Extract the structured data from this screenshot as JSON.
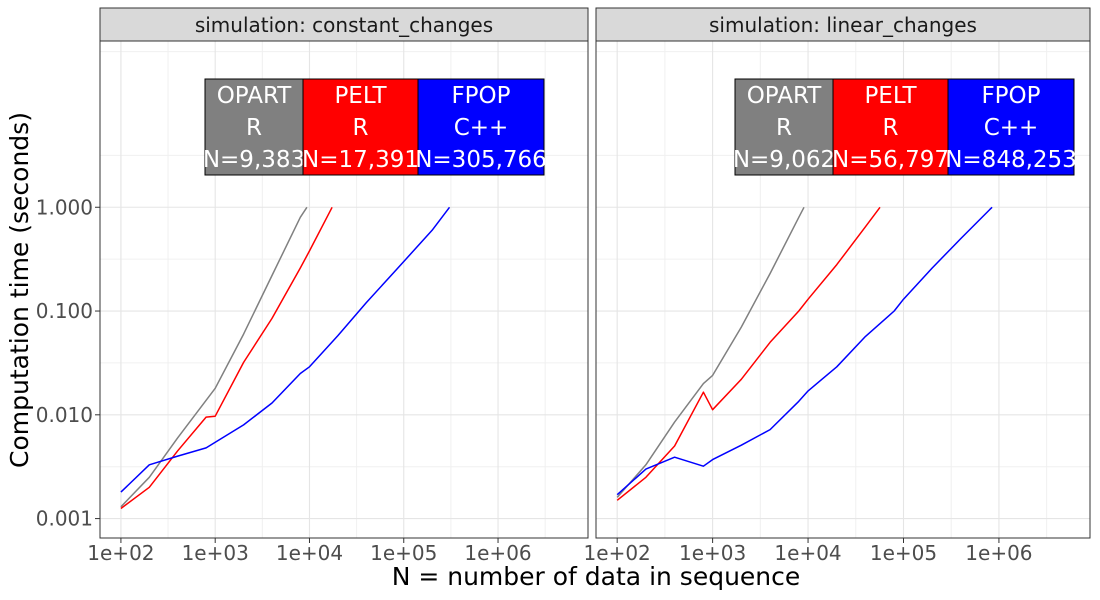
{
  "chart_data": {
    "type": "line",
    "xlabel": "N = number of data in sequence",
    "ylabel": "Computation time (seconds)",
    "x_scale": "log10",
    "y_scale": "log10",
    "xlim": [
      60,
      9000000
    ],
    "ylim": [
      0.00065,
      40
    ],
    "x_ticks": [
      {
        "value": 100,
        "label": "1e+02"
      },
      {
        "value": 1000,
        "label": "1e+03"
      },
      {
        "value": 10000,
        "label": "1e+04"
      },
      {
        "value": 100000,
        "label": "1e+05"
      },
      {
        "value": 1000000,
        "label": "1e+06"
      }
    ],
    "y_ticks": [
      {
        "value": 0.001,
        "label": "0.001"
      },
      {
        "value": 0.01,
        "label": "0.010"
      },
      {
        "value": 0.1,
        "label": "0.100"
      },
      {
        "value": 1,
        "label": "1.000"
      }
    ],
    "grid": true,
    "colors": {
      "OPART": "#808080",
      "PELT": "#ff0000",
      "FPOP": "#0000ff"
    },
    "panels": [
      {
        "strip": "simulation: constant_changes",
        "labels": [
          {
            "series": "OPART",
            "lines": [
              "OPART",
              "R",
              "N=9,383"
            ]
          },
          {
            "series": "PELT",
            "lines": [
              "PELT",
              "R",
              "N=17,391"
            ]
          },
          {
            "series": "FPOP",
            "lines": [
              "FPOP",
              "C++",
              "N=305,766"
            ]
          }
        ],
        "series": [
          {
            "key": "OPART",
            "x": [
              100,
              200,
              400,
              1000,
              2000,
              4000,
              8000,
              9383
            ],
            "y": [
              0.0013,
              0.0025,
              0.006,
              0.018,
              0.06,
              0.22,
              0.8,
              1.0
            ]
          },
          {
            "key": "PELT",
            "x": [
              100,
              200,
              400,
              800,
              1000,
              2000,
              4000,
              8000,
              10000,
              17391
            ],
            "y": [
              0.00125,
              0.002,
              0.0045,
              0.0095,
              0.0097,
              0.032,
              0.085,
              0.26,
              0.38,
              1.0
            ]
          },
          {
            "key": "FPOP",
            "x": [
              100,
              200,
              400,
              800,
              2000,
              4000,
              8000,
              10000,
              20000,
              40000,
              80000,
              100000,
              200000,
              305766
            ],
            "y": [
              0.0018,
              0.0033,
              0.004,
              0.0048,
              0.008,
              0.013,
              0.025,
              0.029,
              0.058,
              0.12,
              0.24,
              0.3,
              0.6,
              1.0
            ]
          }
        ]
      },
      {
        "strip": "simulation: linear_changes",
        "labels": [
          {
            "series": "OPART",
            "lines": [
              "OPART",
              "R",
              "N=9,062"
            ]
          },
          {
            "series": "PELT",
            "lines": [
              "PELT",
              "R",
              "N=56,797"
            ]
          },
          {
            "series": "FPOP",
            "lines": [
              "FPOP",
              "C++",
              "N=848,253"
            ]
          }
        ],
        "series": [
          {
            "key": "OPART",
            "x": [
              100,
              200,
              400,
              800,
              1000,
              2000,
              4000,
              8000,
              9062
            ],
            "y": [
              0.0016,
              0.0033,
              0.0085,
              0.02,
              0.024,
              0.07,
              0.23,
              0.8,
              1.0
            ]
          },
          {
            "key": "PELT",
            "x": [
              100,
              200,
              400,
              800,
              1000,
              2000,
              4000,
              8000,
              10000,
              20000,
              40000,
              56797
            ],
            "y": [
              0.0015,
              0.0025,
              0.005,
              0.0165,
              0.0112,
              0.022,
              0.05,
              0.1,
              0.13,
              0.28,
              0.65,
              1.0
            ]
          },
          {
            "key": "FPOP",
            "x": [
              100,
              200,
              400,
              800,
              1000,
              2000,
              4000,
              8000,
              10000,
              20000,
              40000,
              80000,
              100000,
              200000,
              400000,
              800000,
              848253
            ],
            "y": [
              0.0017,
              0.003,
              0.0039,
              0.0032,
              0.0037,
              0.0051,
              0.0072,
              0.0135,
              0.017,
              0.029,
              0.057,
              0.1,
              0.13,
              0.26,
              0.5,
              0.95,
              1.0
            ]
          }
        ]
      }
    ]
  }
}
